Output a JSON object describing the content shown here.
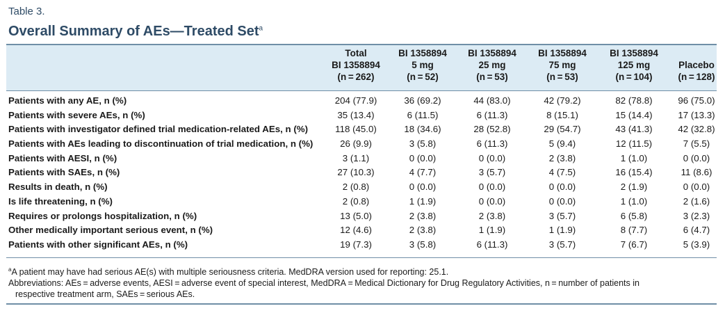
{
  "table_label": "Table 3.",
  "title": "Overall Summary of AEs—Treated Set",
  "title_sup": "a",
  "columns": [
    {
      "l1": "Total",
      "l2": "BI 1358894",
      "l3": "(n = 262)"
    },
    {
      "l1": "BI 1358894",
      "l2": "5 mg",
      "l3": "(n = 52)"
    },
    {
      "l1": "BI 1358894",
      "l2": "25 mg",
      "l3": "(n = 53)"
    },
    {
      "l1": "BI 1358894",
      "l2": "75 mg",
      "l3": "(n = 53)"
    },
    {
      "l1": "BI 1358894",
      "l2": "125 mg",
      "l3": "(n = 104)"
    },
    {
      "l1": "",
      "l2": "Placebo",
      "l3": "(n = 128)"
    }
  ],
  "rows": [
    {
      "label": "Patients with any AE, n (%)",
      "values": [
        "204 (77.9)",
        "36 (69.2)",
        "44 (83.0)",
        "42 (79.2)",
        "82 (78.8)",
        "96 (75.0)"
      ]
    },
    {
      "label": "Patients with severe AEs, n (%)",
      "values": [
        "35 (13.4)",
        "6 (11.5)",
        "6 (11.3)",
        "8 (15.1)",
        "15 (14.4)",
        "17 (13.3)"
      ]
    },
    {
      "label": "Patients with investigator defined trial medication-related AEs, n (%)",
      "values": [
        "118 (45.0)",
        "18 (34.6)",
        "28 (52.8)",
        "29 (54.7)",
        "43 (41.3)",
        "42 (32.8)"
      ]
    },
    {
      "label": "Patients with AEs leading to discontinuation of trial medication, n (%)",
      "values": [
        "26 (9.9)",
        "3 (5.8)",
        "6 (11.3)",
        "5 (9.4)",
        "12 (11.5)",
        "7 (5.5)"
      ]
    },
    {
      "label": "Patients with AESI, n (%)",
      "values": [
        "3 (1.1)",
        "0 (0.0)",
        "0 (0.0)",
        "2 (3.8)",
        "1 (1.0)",
        "0 (0.0)"
      ]
    },
    {
      "label": "Patients with SAEs, n (%)",
      "values": [
        "27 (10.3)",
        "4 (7.7)",
        "3 (5.7)",
        "4 (7.5)",
        "16 (15.4)",
        "11 (8.6)"
      ]
    },
    {
      "label": "Results in death, n (%)",
      "values": [
        "2 (0.8)",
        "0 (0.0)",
        "0 (0.0)",
        "0 (0.0)",
        "2 (1.9)",
        "0 (0.0)"
      ]
    },
    {
      "label": "Is life threatening, n (%)",
      "values": [
        "2 (0.8)",
        "1 (1.9)",
        "0 (0.0)",
        "0 (0.0)",
        "1 (1.0)",
        "2 (1.6)"
      ]
    },
    {
      "label": "Requires or prolongs hospitalization, n (%)",
      "values": [
        "13 (5.0)",
        "2 (3.8)",
        "2 (3.8)",
        "3 (5.7)",
        "6 (5.8)",
        "3 (2.3)"
      ]
    },
    {
      "label": "Other medically important serious event, n (%)",
      "values": [
        "12 (4.6)",
        "2 (3.8)",
        "1 (1.9)",
        "1 (1.9)",
        "8 (7.7)",
        "6 (4.7)"
      ]
    },
    {
      "label": "Patients with other significant AEs, n (%)",
      "values": [
        "19 (7.3)",
        "3 (5.8)",
        "6 (11.3)",
        "3 (5.7)",
        "7 (6.7)",
        "5 (3.9)"
      ]
    }
  ],
  "footnote_a_marker": "a",
  "footnote_a": "A patient may have had serious AE(s) with multiple seriousness criteria. MedDRA version used for reporting: 25.1.",
  "abbreviations_line1": "Abbreviations: AEs = adverse events, AESI = adverse event of special interest, MedDRA = Medical Dictionary for Drug Regulatory Activities, n = number of patients in",
  "abbreviations_line2": "respective treatment arm, SAEs = serious AEs.",
  "colors": {
    "heading": "#2e4b66",
    "header_band": "#dcebf4",
    "rule": "#6f8ea6"
  }
}
